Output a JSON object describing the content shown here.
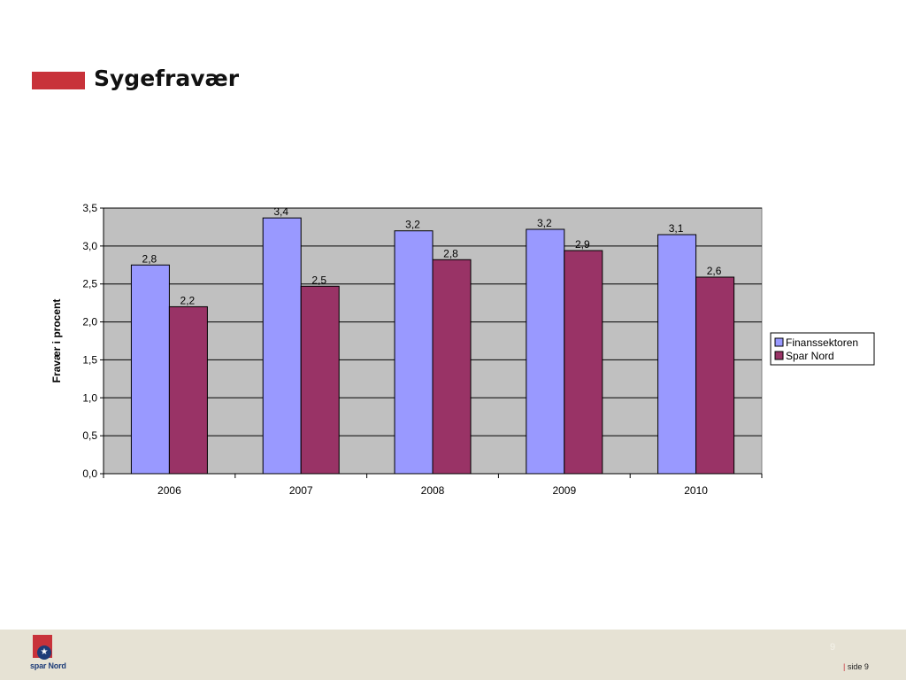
{
  "slide": {
    "title": "Sygefravær",
    "accent_color": "#c8323a"
  },
  "footer": {
    "logo_text": "spar Nord",
    "logo_icon": "star-icon",
    "page_number": "9",
    "side_separator": "|",
    "side_label": "side 9",
    "background": "#e6e2d4"
  },
  "chart_data": {
    "type": "bar",
    "title": "",
    "xlabel": "",
    "ylabel": "Fravær i procent",
    "categories": [
      "2006",
      "2007",
      "2008",
      "2009",
      "2010"
    ],
    "series": [
      {
        "name": "Finanssektoren",
        "color": "#9999ff",
        "values": [
          2.75,
          3.37,
          3.2,
          3.22,
          3.15
        ],
        "labels": [
          "2,8",
          "3,4",
          "3,2",
          "3,2",
          "3,1"
        ]
      },
      {
        "name": "Spar Nord",
        "color": "#993366",
        "values": [
          2.2,
          2.47,
          2.82,
          2.94,
          2.59
        ],
        "labels": [
          "2,2",
          "2,5",
          "2,8",
          "2,9",
          "2,6"
        ]
      }
    ],
    "ylim": [
      0,
      3.5
    ],
    "yticks": [
      0,
      0.5,
      1.0,
      1.5,
      2.0,
      2.5,
      3.0,
      3.5
    ],
    "ytick_labels": [
      "0,0",
      "0,5",
      "1,0",
      "1,5",
      "2,0",
      "2,5",
      "3,0",
      "3,5"
    ],
    "grid": true,
    "legend_position": "right",
    "plot_background": "#c0c0c0"
  }
}
